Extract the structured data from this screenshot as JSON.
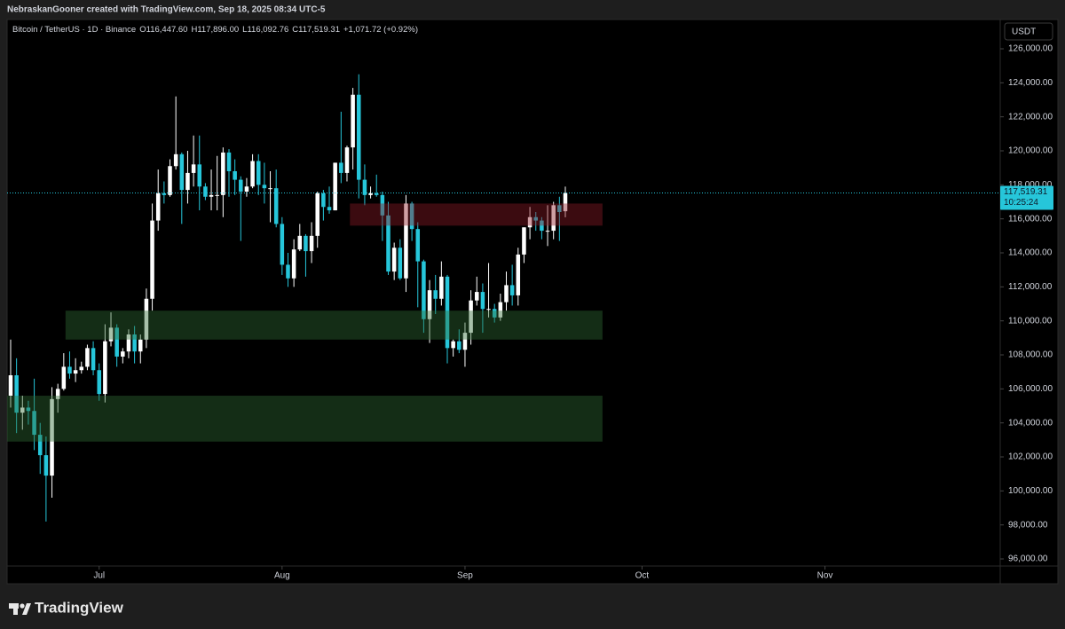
{
  "credit": "NebraskanGooner created with TradingView.com, Sep 18, 2025 08:34 UTC-5",
  "brand": "TradingView",
  "chart_data": {
    "type": "candlestick",
    "symbol": "Bitcoin / TetherUS · 1D · Binance",
    "legend_values": [
      "O116,447.60",
      "H117,896.00",
      "L116,092.76",
      "C117,519.31",
      "+1,071.72 (+0.92%)"
    ],
    "currency": "USDT",
    "up_color": "#ffffff",
    "down_color": "#26c6da",
    "open": [
      105600,
      106800,
      104600,
      104900,
      104700,
      103300,
      102100,
      100900,
      105400,
      106000,
      107300,
      106900,
      107100,
      107300,
      108400,
      107100,
      105700,
      108800,
      109600,
      107900,
      108200,
      109200,
      108200,
      108900,
      111300,
      115900,
      117500,
      117400,
      119100,
      119800,
      117700,
      118700,
      119200,
      117900,
      117300,
      117400,
      117400,
      119900,
      118800,
      118300,
      117600,
      117900,
      119400,
      118000,
      117800,
      117800,
      115700,
      113300,
      112500,
      114200,
      115000,
      114100,
      115000,
      117500,
      116700,
      116500,
      119300,
      118700,
      120200,
      123300,
      118300,
      117400,
      117500,
      117400,
      116200,
      112900,
      114300,
      112500,
      116900,
      115400,
      113500,
      110100,
      111800,
      111300,
      112600,
      108400,
      108800,
      108300,
      109300,
      111200,
      111700,
      110700,
      110700,
      110200,
      111100,
      112100,
      111500,
      113900,
      115500,
      116100,
      115900,
      115300,
      115300,
      116800,
      116447.6
    ],
    "high": [
      108900,
      107800,
      105600,
      105300,
      106600,
      104000,
      103200,
      106100,
      106300,
      108100,
      108200,
      107800,
      107600,
      108600,
      108800,
      107500,
      109800,
      110500,
      109800,
      108400,
      109500,
      109700,
      109200,
      111900,
      116900,
      118900,
      118200,
      119500,
      123200,
      119900,
      120000,
      120900,
      120900,
      118100,
      118900,
      119700,
      120200,
      120100,
      119500,
      118500,
      118400,
      119800,
      119800,
      119300,
      118800,
      118900,
      116100,
      114000,
      114800,
      115700,
      115100,
      115800,
      117600,
      117700,
      117900,
      119300,
      122300,
      120300,
      123700,
      124500,
      119200,
      117900,
      118600,
      117600,
      117000,
      114600,
      114800,
      117400,
      117000,
      115800,
      113600,
      112400,
      112700,
      113500,
      112700,
      108900,
      109500,
      109900,
      111800,
      112600,
      112200,
      113400,
      111000,
      111600,
      112900,
      113300,
      114300,
      115500,
      116700,
      116400,
      116100,
      116800,
      117000,
      117300,
      117896
    ],
    "low": [
      104900,
      103400,
      103600,
      103900,
      102400,
      101000,
      98200,
      99600,
      104600,
      105900,
      106600,
      106400,
      106900,
      107100,
      106800,
      105300,
      105200,
      108500,
      107300,
      107500,
      107800,
      107500,
      107500,
      108400,
      110600,
      115300,
      116900,
      117300,
      118900,
      115700,
      116900,
      117900,
      116500,
      117100,
      116500,
      116500,
      116100,
      117300,
      117400,
      114700,
      117300,
      117800,
      117400,
      116900,
      115800,
      115500,
      112700,
      112000,
      112000,
      114100,
      112600,
      113400,
      114300,
      115900,
      116300,
      116500,
      118100,
      118200,
      118900,
      117200,
      116800,
      117200,
      117300,
      114700,
      112700,
      112400,
      112400,
      111700,
      114700,
      110800,
      109300,
      108700,
      110400,
      110900,
      107500,
      107900,
      108100,
      107300,
      108600,
      110900,
      109300,
      110200,
      109900,
      110000,
      110600,
      110900,
      110900,
      113400,
      114800,
      115300,
      114800,
      114400,
      114800,
      114700,
      116092.76
    ],
    "close": [
      106800,
      104600,
      104900,
      104700,
      103300,
      102100,
      100900,
      105400,
      106000,
      107300,
      106900,
      107100,
      107300,
      108400,
      107100,
      105700,
      108800,
      109600,
      107900,
      108200,
      109200,
      108200,
      108900,
      111300,
      115900,
      117500,
      117400,
      119100,
      119800,
      117700,
      118700,
      119200,
      117900,
      117300,
      117400,
      117400,
      119900,
      118800,
      118300,
      117600,
      117900,
      119400,
      118000,
      117800,
      117800,
      115700,
      113300,
      112500,
      114200,
      115000,
      114100,
      115000,
      117500,
      116700,
      116500,
      119300,
      118700,
      120200,
      123300,
      118300,
      117400,
      117500,
      117400,
      116200,
      112900,
      114300,
      112500,
      116900,
      115400,
      113500,
      110100,
      111800,
      111300,
      112600,
      108400,
      108800,
      108300,
      109300,
      111200,
      111700,
      110700,
      110700,
      110200,
      111100,
      112100,
      111500,
      113900,
      115500,
      116100,
      115900,
      115300,
      115300,
      116800,
      116400,
      117519.31
    ],
    "zones": [
      {
        "color": "#8c1a26",
        "y": [
          116900,
          115600
        ],
        "x": [
          57.5,
          100.3
        ]
      },
      {
        "color": "#2f6b34",
        "y": [
          110600,
          108900
        ],
        "x": [
          9.3,
          100.3
        ]
      },
      {
        "color": "#2f6b34",
        "y": [
          105600,
          102900
        ],
        "x": [
          -0.6,
          100.3
        ]
      }
    ],
    "last_price": {
      "value": 117519.31,
      "label": "117,519.31"
    },
    "countdown": "10:25:24",
    "price_color": "#26c6da",
    "xlim": [
      -0.6,
      167.7
    ],
    "xticks": [
      {
        "value": 15,
        "label": "Jul"
      },
      {
        "value": 46,
        "label": "Aug"
      },
      {
        "value": 77,
        "label": "Sep"
      },
      {
        "value": 107,
        "label": "Oct"
      },
      {
        "value": 138,
        "label": "Nov"
      }
    ],
    "ylim": [
      95583,
      127722
    ],
    "yticks": [
      {
        "value": 96000,
        "label": "96,000.00"
      },
      {
        "value": 98000,
        "label": "98,000.00"
      },
      {
        "value": 100000,
        "label": "100,000.00"
      },
      {
        "value": 102000,
        "label": "102,000.00"
      },
      {
        "value": 104000,
        "label": "104,000.00"
      },
      {
        "value": 106000,
        "label": "106,000.00"
      },
      {
        "value": 108000,
        "label": "108,000.00"
      },
      {
        "value": 110000,
        "label": "110,000.00"
      },
      {
        "value": 112000,
        "label": "112,000.00"
      },
      {
        "value": 114000,
        "label": "114,000.00"
      },
      {
        "value": 116000,
        "label": "116,000.00"
      },
      {
        "value": 118000,
        "label": "118,000.00"
      },
      {
        "value": 120000,
        "label": "120,000.00"
      },
      {
        "value": 122000,
        "label": "122,000.00"
      },
      {
        "value": 124000,
        "label": "124,000.00"
      },
      {
        "value": 126000,
        "label": "126,000.00"
      }
    ],
    "grid": false
  }
}
